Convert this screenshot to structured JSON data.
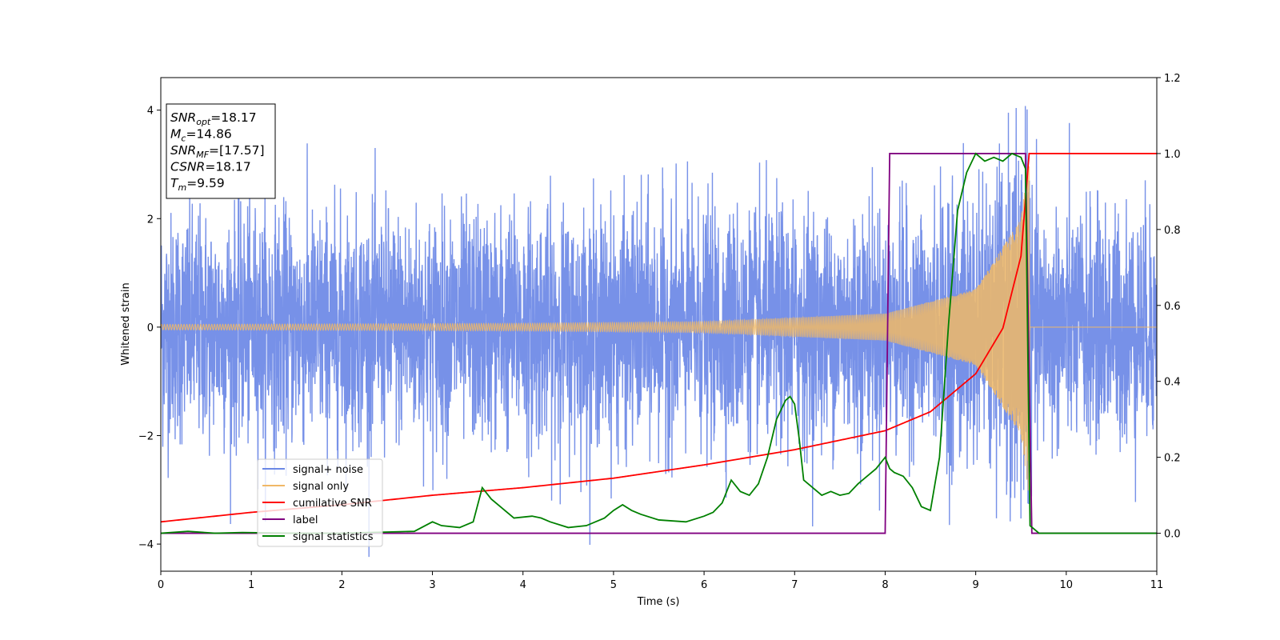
{
  "chart_data": {
    "type": "line",
    "xlabel": "Time (s)",
    "ylabel": "Whitened strain",
    "xlim": [
      0,
      11
    ],
    "ylim": [
      -4.5,
      4.6
    ],
    "y2lim": [
      -0.1,
      1.2
    ],
    "x_ticks": [
      "0",
      "1",
      "2",
      "3",
      "4",
      "5",
      "6",
      "7",
      "8",
      "9",
      "10",
      "11"
    ],
    "y_ticks": [
      "-4",
      "-2",
      "0",
      "2",
      "4"
    ],
    "y2_ticks": [
      "0.0",
      "0.2",
      "0.4",
      "0.6",
      "0.8",
      "1.0",
      "1.2"
    ],
    "legend_placement": "lower-left",
    "colors": {
      "signal_noise": "#6b88e6",
      "signal_only": "#f0b866",
      "cumulative_snr": "#ff0000",
      "label": "#800080",
      "signal_statistics": "#008000"
    },
    "series": [
      {
        "name": "signal+ noise",
        "axis": "left",
        "description_values": "whitened noise ~N(0,1) plus chirp signal, 0–11 s"
      },
      {
        "name": "signal only",
        "axis": "left",
        "amplitude_envelope": [
          [
            0,
            0.05
          ],
          [
            4,
            0.07
          ],
          [
            6,
            0.1
          ],
          [
            8,
            0.25
          ],
          [
            9,
            0.7
          ],
          [
            9.5,
            2.0
          ],
          [
            9.59,
            3.2
          ],
          [
            9.6,
            0
          ]
        ]
      },
      {
        "name": "cumilative SNR",
        "axis": "right",
        "x": [
          0,
          1,
          2,
          3,
          4,
          5,
          6,
          7,
          8,
          8.5,
          9,
          9.3,
          9.5,
          9.59,
          11
        ],
        "y": [
          0.03,
          0.055,
          0.075,
          0.1,
          0.12,
          0.145,
          0.18,
          0.22,
          0.27,
          0.32,
          0.42,
          0.54,
          0.73,
          1.0,
          1.0
        ]
      },
      {
        "name": "label",
        "axis": "right",
        "x": [
          0,
          8.0,
          8.05,
          9.55,
          9.62,
          11
        ],
        "y": [
          0.0,
          0.0,
          1.0,
          1.0,
          0.0,
          0.0
        ]
      },
      {
        "name": "signal statistics",
        "axis": "right",
        "x": [
          0,
          0.3,
          0.6,
          0.9,
          1.5,
          2.0,
          2.8,
          3.0,
          3.1,
          3.3,
          3.45,
          3.55,
          3.65,
          3.75,
          3.9,
          4.1,
          4.2,
          4.3,
          4.5,
          4.7,
          4.9,
          5.0,
          5.1,
          5.2,
          5.3,
          5.5,
          5.8,
          6.0,
          6.1,
          6.2,
          6.3,
          6.4,
          6.5,
          6.6,
          6.7,
          6.8,
          6.9,
          6.95,
          7.0,
          7.05,
          7.1,
          7.2,
          7.3,
          7.4,
          7.5,
          7.6,
          7.7,
          7.8,
          7.9,
          8.0,
          8.05,
          8.1,
          8.2,
          8.3,
          8.4,
          8.5,
          8.6,
          8.7,
          8.8,
          8.9,
          9.0,
          9.1,
          9.2,
          9.3,
          9.4,
          9.5,
          9.55,
          9.6,
          9.7,
          11
        ],
        "y": [
          0.0,
          0.005,
          0.0,
          0.002,
          0.0,
          0.0,
          0.005,
          0.03,
          0.02,
          0.015,
          0.03,
          0.12,
          0.09,
          0.07,
          0.04,
          0.045,
          0.04,
          0.03,
          0.015,
          0.02,
          0.04,
          0.06,
          0.075,
          0.06,
          0.05,
          0.035,
          0.03,
          0.045,
          0.055,
          0.08,
          0.14,
          0.11,
          0.1,
          0.13,
          0.2,
          0.3,
          0.35,
          0.36,
          0.34,
          0.25,
          0.14,
          0.12,
          0.1,
          0.11,
          0.1,
          0.105,
          0.13,
          0.15,
          0.17,
          0.2,
          0.17,
          0.16,
          0.15,
          0.12,
          0.07,
          0.06,
          0.2,
          0.55,
          0.85,
          0.95,
          1.0,
          0.98,
          0.99,
          0.98,
          1.0,
          0.99,
          0.96,
          0.02,
          0.0,
          0.0
        ]
      }
    ],
    "annotation": {
      "lines": [
        {
          "base": "SNR",
          "sub": "opt",
          "rest": "=18.17"
        },
        {
          "base": "M",
          "sub": "c",
          "rest": "=14.86"
        },
        {
          "base": "SNR",
          "sub": "MF",
          "rest": "=[17.57]"
        },
        {
          "base": "CSNR",
          "sub": "",
          "rest": "=18.17"
        },
        {
          "base": "T",
          "sub": "m",
          "rest": "=9.59"
        }
      ]
    }
  }
}
